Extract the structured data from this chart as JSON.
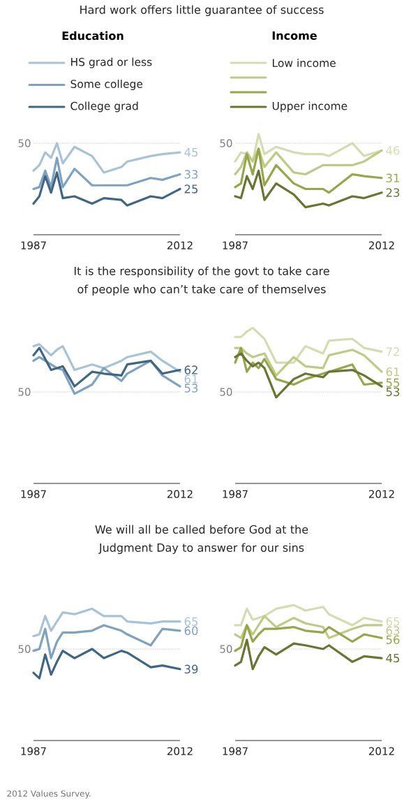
{
  "chart_data": [
    {
      "type": "line",
      "title": "Hard work offers little guarantee of success",
      "legend_title": "Education",
      "legend": "top",
      "ref_lines": [
        {
          "axis": "y",
          "value": 50,
          "label": "50"
        }
      ],
      "x": [
        1987,
        1988,
        1989,
        1990,
        1991,
        1992,
        1994,
        1997,
        1999,
        2002,
        2003,
        2007,
        2009,
        2012
      ],
      "xlim": [
        1987,
        2012
      ],
      "xticks": [
        1987,
        2012
      ],
      "series": [
        {
          "name": "HS grad or less",
          "color": "#a8c3d8",
          "values": [
            35,
            38,
            45,
            42,
            50,
            39,
            48,
            43,
            34,
            37,
            40,
            43,
            44,
            45
          ],
          "value_labels": [
            null,
            null,
            null,
            null,
            null,
            null,
            null,
            null,
            null,
            null,
            null,
            null,
            null,
            "45"
          ]
        },
        {
          "name": "Some college",
          "color": "#7ea2bf",
          "values": [
            25,
            26,
            35,
            26,
            42,
            26,
            36,
            27,
            27,
            27,
            27,
            31,
            30,
            33
          ],
          "value_labels": [
            null,
            null,
            null,
            null,
            null,
            null,
            null,
            null,
            null,
            null,
            null,
            null,
            null,
            "33"
          ]
        },
        {
          "name": "College grad",
          "color": "#3f6783",
          "values": [
            17,
            21,
            32,
            23,
            34,
            20,
            21,
            17,
            20,
            19,
            16,
            21,
            20,
            25
          ],
          "value_labels": [
            null,
            null,
            null,
            null,
            null,
            null,
            null,
            null,
            null,
            null,
            null,
            null,
            null,
            "25"
          ]
        }
      ]
    },
    {
      "type": "line",
      "legend_title": "Income",
      "legend": "top",
      "ref_lines": [
        {
          "axis": "y",
          "value": 50,
          "label": "50"
        }
      ],
      "x": [
        1987,
        1988,
        1989,
        1990,
        1991,
        1992,
        1994,
        1997,
        1999,
        2002,
        2003,
        2007,
        2009,
        2012
      ],
      "xlim": [
        1987,
        2012
      ],
      "xticks": [
        1987,
        2012
      ],
      "series": [
        {
          "name": "Low income",
          "color": "#d5dcb0",
          "values": [
            40,
            45,
            44,
            40,
            55,
            44,
            48,
            45,
            44,
            44,
            43,
            50,
            43,
            46
          ],
          "value_labels": [
            null,
            null,
            null,
            null,
            null,
            null,
            null,
            null,
            null,
            null,
            null,
            null,
            null,
            "46"
          ]
        },
        {
          "color": "#bccb85",
          "values": [
            33,
            37,
            45,
            40,
            47,
            37,
            45,
            34,
            33,
            38,
            38,
            38,
            40,
            46
          ]
        },
        {
          "color": "#97a64a",
          "values": [
            26,
            28,
            44,
            33,
            47,
            27,
            38,
            28,
            25,
            25,
            23,
            33,
            32,
            31
          ],
          "value_labels": [
            null,
            null,
            null,
            null,
            null,
            null,
            null,
            null,
            null,
            null,
            null,
            null,
            null,
            "31"
          ]
        },
        {
          "name": "Upper income",
          "color": "#6a7433",
          "values": [
            21,
            20,
            32,
            25,
            35,
            19,
            28,
            22,
            15,
            17,
            16,
            21,
            20,
            23
          ],
          "value_labels": [
            null,
            null,
            null,
            null,
            null,
            null,
            null,
            null,
            null,
            null,
            null,
            null,
            null,
            "23"
          ]
        }
      ]
    },
    {
      "type": "line",
      "title": "It is the responsibility of the govt to take care of people who can’t take care of themselves",
      "ref_lines": [
        {
          "axis": "y",
          "value": 50,
          "label": "50"
        }
      ],
      "x": [
        1987,
        1988,
        1989,
        1990,
        1991,
        1992,
        1994,
        1997,
        1999,
        2002,
        2003,
        2007,
        2009,
        2012
      ],
      "xlim": [
        1987,
        2012
      ],
      "xticks": [
        1987,
        2012
      ],
      "series": [
        {
          "color": "#a8c3d8",
          "values": [
            75,
            76,
            73,
            70,
            73,
            75,
            62,
            65,
            63,
            67,
            69,
            72,
            67,
            61
          ],
          "value_labels": [
            null,
            null,
            null,
            null,
            null,
            null,
            null,
            null,
            null,
            null,
            null,
            null,
            null,
            "61"
          ]
        },
        {
          "color": "#7ea2bf",
          "values": [
            67,
            69,
            67,
            65,
            63,
            62,
            49,
            54,
            63,
            56,
            60,
            67,
            59,
            53
          ],
          "value_labels": [
            null,
            null,
            null,
            null,
            null,
            null,
            null,
            null,
            null,
            null,
            null,
            null,
            null,
            "53"
          ]
        },
        {
          "color": "#3f6783",
          "values": [
            70,
            74,
            68,
            62,
            63,
            64,
            53,
            61,
            60,
            59,
            65,
            67,
            60,
            62
          ],
          "value_labels": [
            null,
            null,
            null,
            null,
            null,
            null,
            null,
            null,
            null,
            null,
            null,
            null,
            null,
            "62"
          ]
        }
      ]
    },
    {
      "type": "line",
      "ref_lines": [
        {
          "axis": "y",
          "value": 50,
          "label": "50"
        }
      ],
      "x": [
        1987,
        1988,
        1989,
        1990,
        1991,
        1992,
        1994,
        1997,
        1999,
        2002,
        2003,
        2007,
        2009,
        2012
      ],
      "xlim": [
        1987,
        2012
      ],
      "xticks": [
        1987,
        2012
      ],
      "series": [
        {
          "color": "#d5dcb0",
          "values": [
            80,
            80,
            83,
            85,
            82,
            79,
            66,
            66,
            75,
            71,
            78,
            79,
            74,
            72
          ],
          "value_labels": [
            null,
            null,
            null,
            null,
            null,
            null,
            null,
            null,
            null,
            null,
            null,
            null,
            null,
            "72"
          ]
        },
        {
          "color": "#bccb85",
          "values": [
            74,
            74,
            71,
            69,
            70,
            71,
            59,
            69,
            64,
            63,
            70,
            73,
            70,
            61
          ],
          "value_labels": [
            null,
            null,
            null,
            null,
            null,
            null,
            null,
            null,
            null,
            null,
            null,
            null,
            null,
            "61"
          ]
        },
        {
          "color": "#97a64a",
          "values": [
            66,
            74,
            61,
            66,
            63,
            68,
            57,
            54,
            57,
            60,
            61,
            65,
            54,
            55
          ],
          "value_labels": [
            null,
            null,
            null,
            null,
            null,
            null,
            null,
            null,
            null,
            null,
            null,
            null,
            null,
            "55"
          ]
        },
        {
          "color": "#6a7433",
          "values": [
            69,
            71,
            67,
            64,
            66,
            63,
            47,
            57,
            60,
            58,
            61,
            62,
            59,
            53
          ],
          "value_labels": [
            null,
            null,
            null,
            null,
            null,
            null,
            null,
            null,
            null,
            null,
            null,
            null,
            null,
            "53"
          ]
        }
      ]
    },
    {
      "type": "line",
      "title": "We will all be called before God at the Judgment Day to answer for our sins",
      "annotations": [
        "2012 Values Survey."
      ],
      "ref_lines": [
        {
          "axis": "y",
          "value": 50,
          "label": "50"
        }
      ],
      "x": [
        1987,
        1988,
        1989,
        1990,
        1991,
        1992,
        1994,
        1997,
        1999,
        2002,
        2003,
        2007,
        2009,
        2012
      ],
      "xlim": [
        1987,
        2012
      ],
      "xticks": [
        1987,
        2012
      ],
      "series": [
        {
          "color": "#a8c3d8",
          "values": [
            57,
            58,
            68,
            60,
            65,
            70,
            69,
            72,
            68,
            68,
            65,
            64,
            65,
            65
          ],
          "value_labels": [
            null,
            null,
            null,
            null,
            null,
            null,
            null,
            null,
            null,
            null,
            null,
            null,
            null,
            "65"
          ]
        },
        {
          "color": "#7ea2bf",
          "values": [
            49,
            50,
            61,
            45,
            54,
            59,
            59,
            60,
            63,
            60,
            58,
            52,
            61,
            60
          ],
          "value_labels": [
            null,
            null,
            null,
            null,
            null,
            null,
            null,
            null,
            null,
            null,
            null,
            null,
            null,
            "60"
          ]
        },
        {
          "color": "#3f6783",
          "values": [
            37,
            34,
            47,
            36,
            43,
            49,
            45,
            50,
            45,
            49,
            48,
            40,
            41,
            39
          ],
          "value_labels": [
            null,
            null,
            null,
            null,
            null,
            null,
            null,
            null,
            null,
            null,
            null,
            null,
            null,
            "39"
          ]
        }
      ]
    },
    {
      "type": "line",
      "ref_lines": [
        {
          "axis": "y",
          "value": 50,
          "label": "50"
        }
      ],
      "x": [
        1987,
        1988,
        1989,
        1990,
        1991,
        1992,
        1994,
        1997,
        1999,
        2002,
        2003,
        2007,
        2009,
        2012
      ],
      "xlim": [
        1987,
        2012
      ],
      "xticks": [
        1987,
        2012
      ],
      "series": [
        {
          "color": "#d5dcb0",
          "values": [
            63,
            63,
            72,
            66,
            67,
            68,
            72,
            74,
            71,
            73,
            69,
            63,
            67,
            65
          ],
          "value_labels": [
            null,
            null,
            null,
            null,
            null,
            null,
            null,
            null,
            null,
            null,
            null,
            null,
            null,
            "65"
          ]
        },
        {
          "color": "#bccb85",
          "values": [
            58,
            56,
            63,
            58,
            63,
            68,
            62,
            67,
            64,
            62,
            56,
            61,
            63,
            63
          ],
          "value_labels": [
            null,
            null,
            null,
            null,
            null,
            null,
            null,
            null,
            null,
            null,
            null,
            null,
            null,
            "63"
          ]
        },
        {
          "color": "#97a64a",
          "values": [
            49,
            51,
            63,
            54,
            58,
            61,
            61,
            62,
            60,
            59,
            62,
            54,
            58,
            56
          ],
          "value_labels": [
            null,
            null,
            null,
            null,
            null,
            null,
            null,
            null,
            null,
            null,
            null,
            null,
            null,
            "56"
          ]
        },
        {
          "color": "#6a7433",
          "values": [
            41,
            43,
            55,
            39,
            46,
            51,
            47,
            53,
            52,
            50,
            52,
            43,
            46,
            45
          ],
          "value_labels": [
            null,
            null,
            null,
            null,
            null,
            null,
            null,
            null,
            null,
            null,
            null,
            null,
            null,
            "45"
          ]
        }
      ]
    }
  ]
}
